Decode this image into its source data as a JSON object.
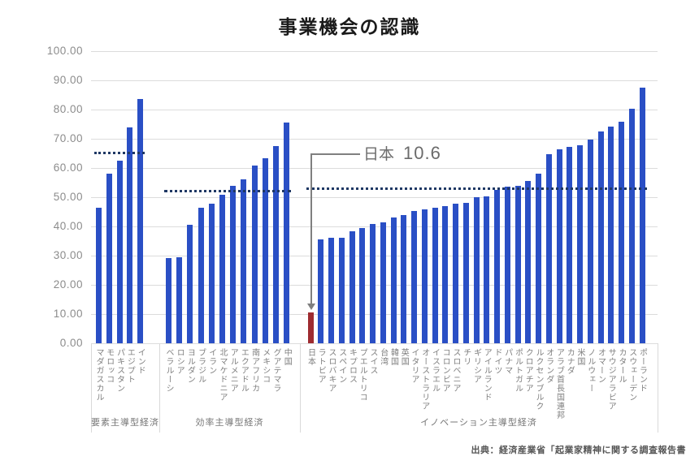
{
  "title": "事業機会の認識",
  "source": "出典：経済産業省「起業家精神に関する調査報告書",
  "annotation": {
    "label": "日本",
    "value": "10.6"
  },
  "colors": {
    "bar_blue": "#2a4fc5",
    "bar_red": "#9e2b30",
    "average_dotted": "#1f3864",
    "grid": "#dcdcdc",
    "axis_text": "#8c8c8c",
    "country_text": "#7f7f7f",
    "annotation_text": "#6b6b6b",
    "annotation_line": "#7f7f7f",
    "title_text": "#1a1a1a",
    "source_text": "#555555"
  },
  "y_axis": {
    "min": 0,
    "max": 100,
    "step": 10,
    "ticks": [
      "100.00",
      "90.00",
      "80.00",
      "70.00",
      "60.00",
      "50.00",
      "40.00",
      "30.00",
      "20.00",
      "10.00",
      "0.00"
    ]
  },
  "chart_data": {
    "type": "bar",
    "title": "事業機会の認識",
    "xlabel": "",
    "ylabel": "",
    "ylim": [
      0,
      100
    ],
    "grid": true,
    "legend": false,
    "highlight_country": "日本",
    "highlight_value": 10.6,
    "average_line_style": "dotted",
    "groups": [
      {
        "label": "要素主導型経済",
        "average": 64.9,
        "categories": [
          "マダガスカル",
          "モロッコ",
          "パキスタン",
          "エジプト",
          "インド"
        ],
        "values": [
          46.4,
          58.1,
          62.5,
          73.9,
          83.6
        ]
      },
      {
        "label": "効率主導型経済",
        "average": 51.9,
        "categories": [
          "ベラルーシ",
          "ロシア",
          "ヨルダン",
          "ブラジル",
          "イラン",
          "北マケドニア",
          "アルメニア",
          "エクアドル",
          "南アフリカ",
          "メキシコ",
          "グアテマラ",
          "中国"
        ],
        "values": [
          29.1,
          29.4,
          40.6,
          46.4,
          47.8,
          50.8,
          53.9,
          56.1,
          60.8,
          63.3,
          67.5,
          75.6
        ]
      },
      {
        "label": "イノベーション主導型経済",
        "average": 52.9,
        "categories": [
          "日本",
          "ラトビア",
          "スロバキア",
          "スペイン",
          "キプロス",
          "プエルトリコ",
          "スイス",
          "台湾",
          "韓国",
          "英国",
          "イタリア",
          "オーストラリア",
          "イスラエル",
          "コロンビア",
          "スロベニア",
          "チリ",
          "ギリシア",
          "アイルランド",
          "ドイツ",
          "パナマ",
          "ポルトガル",
          "クロアチア",
          "ルクセンブルク",
          "オランダ",
          "アラブ首長国連邦",
          "カナダ",
          "米国",
          "ノルウェー",
          "オマーン",
          "サウジアラビア",
          "カタール",
          "スウェーデン",
          "ポーランド"
        ],
        "values": [
          10.6,
          35.5,
          36.2,
          36.0,
          38.3,
          39.4,
          40.8,
          41.4,
          43.1,
          43.9,
          45.3,
          45.8,
          46.4,
          46.9,
          47.8,
          48.0,
          50.0,
          50.2,
          52.5,
          53.7,
          53.9,
          55.6,
          58.1,
          64.7,
          66.4,
          67.2,
          67.8,
          69.7,
          72.5,
          74.2,
          75.8,
          80.2,
          87.4
        ]
      }
    ]
  }
}
